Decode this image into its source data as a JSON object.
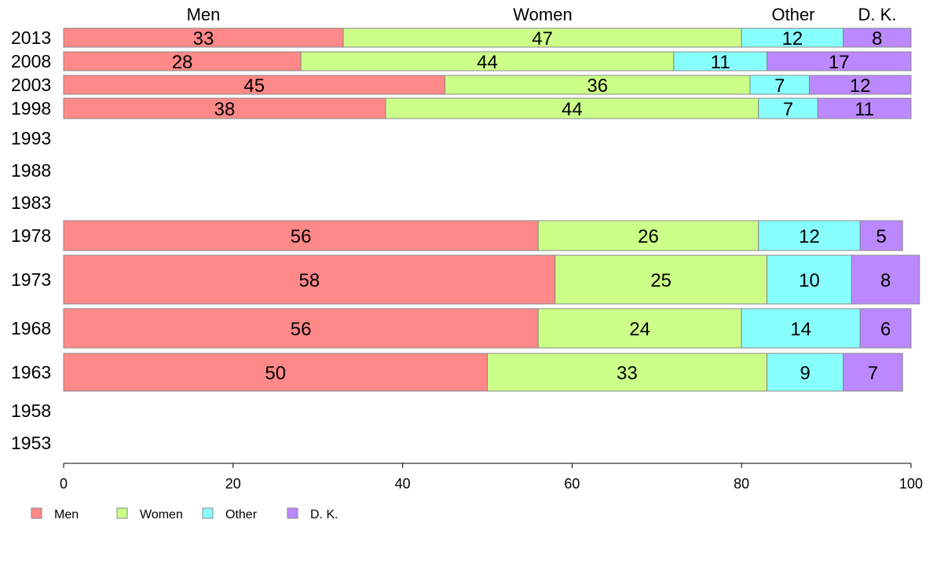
{
  "chart_data": {
    "type": "bar",
    "orientation": "horizontal",
    "stacked": true,
    "column_headers": [
      "Men",
      "Women",
      "Other",
      "D. K."
    ],
    "categories": [
      "2013",
      "2008",
      "2003",
      "1998",
      "1993",
      "1988",
      "1983",
      "1978",
      "1973",
      "1968",
      "1963",
      "1958",
      "1953"
    ],
    "series": [
      {
        "name": "Men",
        "color": "#ff8888",
        "values": [
          33,
          28,
          45,
          38,
          null,
          null,
          null,
          56,
          58,
          56,
          50,
          null,
          null
        ]
      },
      {
        "name": "Women",
        "color": "#ccff88",
        "values": [
          47,
          44,
          36,
          44,
          null,
          null,
          null,
          26,
          25,
          24,
          33,
          null,
          null
        ]
      },
      {
        "name": "Other",
        "color": "#88ffff",
        "values": [
          12,
          11,
          7,
          7,
          null,
          null,
          null,
          12,
          10,
          14,
          9,
          null,
          null
        ]
      },
      {
        "name": "D. K.",
        "color": "#bb88ff",
        "values": [
          8,
          17,
          12,
          11,
          null,
          null,
          null,
          5,
          8,
          6,
          7,
          null,
          null
        ]
      }
    ],
    "xlim": [
      0,
      100
    ],
    "xticks": [
      0,
      20,
      40,
      60,
      80,
      100
    ],
    "legend": {
      "placement": "bottom-left",
      "items": [
        "Men",
        "Women",
        "Other",
        "D. K."
      ]
    },
    "grid": false,
    "title": "",
    "xlabel": "",
    "ylabel": ""
  }
}
